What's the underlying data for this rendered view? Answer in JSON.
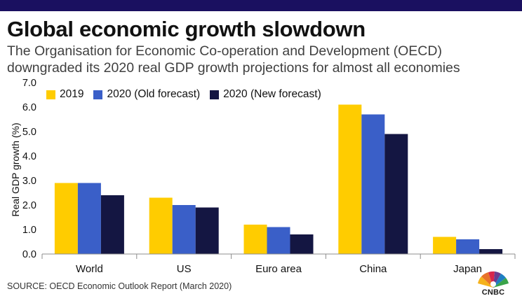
{
  "header": {
    "title": "Global economic growth slowdown",
    "subtitle": "The Organisation for Economic Co-operation and Development (OECD) downgraded its 2020 real GDP growth projections for almost all economies"
  },
  "footer": {
    "source": "SOURCE: OECD Economic Outlook Report (March 2020)",
    "logo_text": "CNBC"
  },
  "colors": {
    "top_bar": "#1a1060",
    "series_2019": "#FFCC00",
    "series_2020_old": "#3A5FC8",
    "series_2020_new": "#141642",
    "axis": "#8c8c8c"
  },
  "chart_data": {
    "type": "bar",
    "title": "Global economic growth slowdown",
    "ylabel": "Real GDP growth (%)",
    "xlabel": "",
    "ylim": [
      0,
      7
    ],
    "yticks": [
      "0.0",
      "1.0",
      "2.0",
      "3.0",
      "4.0",
      "5.0",
      "6.0",
      "7.0"
    ],
    "categories": [
      "World",
      "US",
      "Euro area",
      "China",
      "Japan"
    ],
    "series": [
      {
        "name": "2019",
        "values": [
          2.9,
          2.3,
          1.2,
          6.1,
          0.7
        ]
      },
      {
        "name": "2020 (Old forecast)",
        "values": [
          2.9,
          2.0,
          1.1,
          5.7,
          0.6
        ]
      },
      {
        "name": "2020 (New forecast)",
        "values": [
          2.4,
          1.9,
          0.8,
          4.9,
          0.2
        ]
      }
    ],
    "legend_position": "top-left",
    "grid": false
  }
}
